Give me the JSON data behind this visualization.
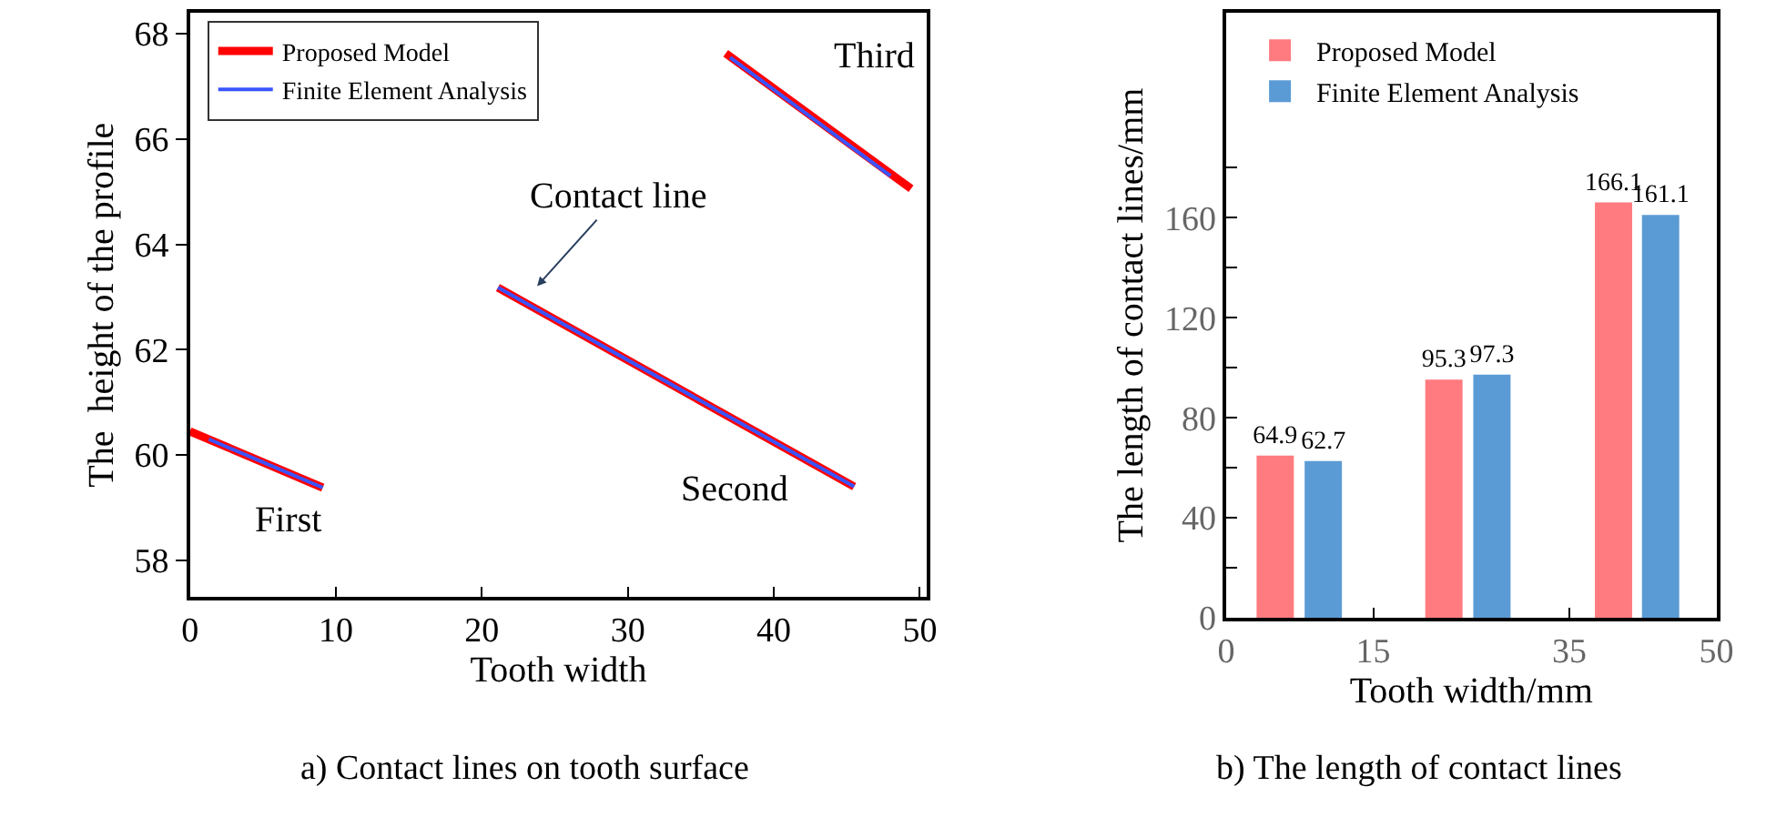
{
  "chart_data": [
    {
      "type": "line",
      "title": "a) Contact lines on tooth surface",
      "xlabel": "Tooth width",
      "ylabel": "The  height of the profile",
      "xlim": [
        0,
        50.5
      ],
      "xticks": [
        0,
        10,
        20,
        30,
        40,
        50
      ],
      "ylim": [
        57.3,
        68.4
      ],
      "yticks": [
        58,
        60,
        62,
        64,
        66,
        68
      ],
      "series": [
        {
          "name": "Proposed Model",
          "color": "#ff0000",
          "x": [
            0,
            9.1,
            null,
            21.1,
            45.5,
            null,
            36.7,
            49.4
          ],
          "values": [
            60.45,
            59.38,
            null,
            63.18,
            59.4,
            null,
            67.63,
            65.06
          ]
        },
        {
          "name": "Finite Element Analysis",
          "color": "#3a55ff",
          "x": [
            1.3,
            9.1,
            null,
            21.1,
            45.5,
            null,
            37.0,
            48.0
          ],
          "values": [
            60.3,
            59.38,
            null,
            63.18,
            59.4,
            null,
            67.55,
            65.3
          ]
        }
      ],
      "annotations": [
        "First",
        "Second",
        "Third",
        "Contact line"
      ],
      "legend": "top left",
      "grid": false,
      "line_style": "solid",
      "marker": "none"
    },
    {
      "type": "bar",
      "title": "b) The length of contact lines",
      "xlabel": "Tooth width/mm",
      "ylabel": "The length of contact lines/mm",
      "xlim": [
        0,
        50
      ],
      "xticks": [
        0,
        15,
        35,
        50
      ],
      "ylim": [
        0,
        242
      ],
      "yticks": [
        0,
        {
          "value": 20,
          "label": null
        },
        40,
        {
          "value": 60,
          "label": null
        },
        80,
        {
          "value": 100,
          "label": null
        },
        120,
        {
          "value": 140,
          "label": null
        },
        160,
        {
          "value": 180,
          "label": null
        }
      ],
      "series": [
        {
          "name": "Proposed Model",
          "color": "#ff7b80",
          "x": [
            5.0,
            22.2,
            39.5
          ],
          "values": [
            64.9,
            95.3,
            166.1
          ]
        },
        {
          "name": "Finite Element Analysis",
          "color": "#5b9bd5",
          "x": [
            9.9,
            27.1,
            44.3
          ],
          "values": [
            62.7,
            97.3,
            161.1
          ]
        }
      ],
      "data_labels": true,
      "legend": "top left",
      "grid": false
    }
  ]
}
